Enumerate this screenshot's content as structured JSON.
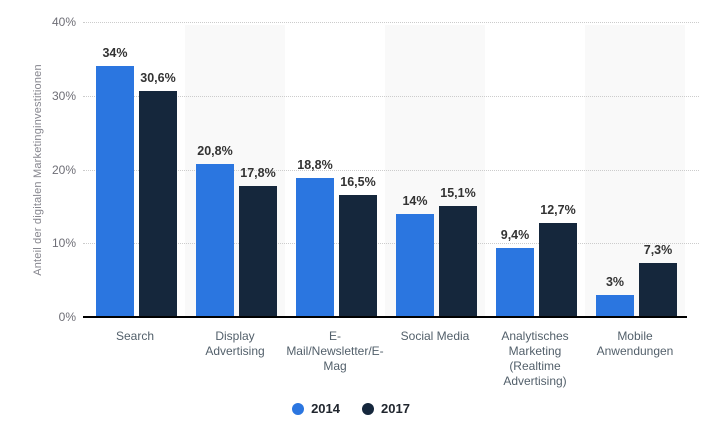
{
  "chart_data": {
    "type": "bar",
    "title": "",
    "xlabel": "",
    "ylabel": "Anteil der digitalen Marketinginvestitionen",
    "ylim": [
      0,
      40
    ],
    "y_ticks": [
      "0%",
      "10%",
      "20%",
      "30%",
      "40%"
    ],
    "grid": "horizontal dotted gridlines at 10/20/30/40%",
    "legend_position": "bottom-center",
    "categories": [
      "Search",
      "Display Advertising",
      "E-Mail/Newsletter/E-Mag",
      "Social Media",
      "Analytisches Marketing (Realtime Advertising)",
      "Mobile Anwendungen"
    ],
    "category_labels_wrapped": [
      "Search",
      "Display\nAdvertising",
      "E-\nMail/Newsletter/E-\nMag",
      "Social Media",
      "Analytisches\nMarketing\n(Realtime\nAdvertising)",
      "Mobile\nAnwendungen"
    ],
    "series": [
      {
        "name": "2014",
        "color": "#2B76E0",
        "values": [
          34,
          20.8,
          18.8,
          14,
          9.4,
          3
        ],
        "labels": [
          "34%",
          "20,8%",
          "18,8%",
          "14%",
          "9,4%",
          "3%"
        ]
      },
      {
        "name": "2017",
        "color": "#15273C",
        "values": [
          30.6,
          17.8,
          16.5,
          15.1,
          12.7,
          7.3
        ],
        "labels": [
          "30,6%",
          "17,8%",
          "16,5%",
          "15,1%",
          "12,7%",
          "7,3%"
        ]
      }
    ]
  },
  "colors": {
    "series_2014": "#2B76E0",
    "series_2017": "#15273C",
    "plot_band_alt": "#f9f9f9",
    "gridline": "#cccccc",
    "axis_line": "#000000",
    "tick_label": "#6e6e76",
    "category_label": "#53606b",
    "value_label": "#333333",
    "axis_title": "#85858d",
    "legend_text": "#20262e",
    "background": "#ffffff"
  }
}
